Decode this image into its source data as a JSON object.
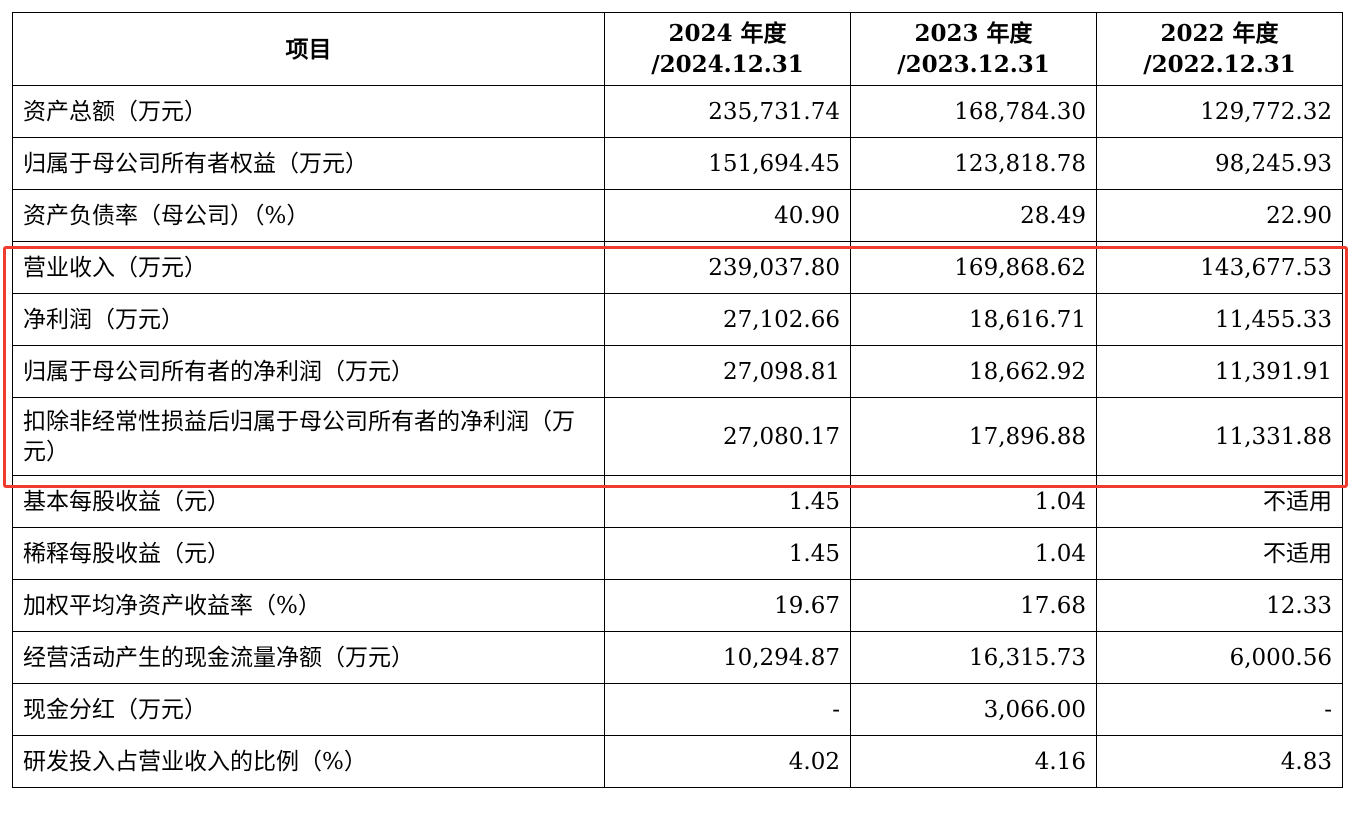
{
  "table": {
    "headers": {
      "item": "项目",
      "col1_line1": "2024 年度",
      "col1_line2": "/2024.12.31",
      "col2_line1": "2023 年度",
      "col2_line2": "/2023.12.31",
      "col3_line1": "2022 年度",
      "col3_line2": "/2022.12.31"
    },
    "rows": [
      {
        "label": "资产总额（万元）",
        "v2024": "235,731.74",
        "v2023": "168,784.30",
        "v2022": "129,772.32"
      },
      {
        "label": "归属于母公司所有者权益（万元）",
        "v2024": "151,694.45",
        "v2023": "123,818.78",
        "v2022": "98,245.93"
      },
      {
        "label": "资产负债率（母公司）（%）",
        "v2024": "40.90",
        "v2023": "28.49",
        "v2022": "22.90"
      },
      {
        "label": "营业收入（万元）",
        "v2024": "239,037.80",
        "v2023": "169,868.62",
        "v2022": "143,677.53"
      },
      {
        "label": "净利润（万元）",
        "v2024": "27,102.66",
        "v2023": "18,616.71",
        "v2022": "11,455.33"
      },
      {
        "label": "归属于母公司所有者的净利润（万元）",
        "v2024": "27,098.81",
        "v2023": "18,662.92",
        "v2022": "11,391.91"
      },
      {
        "label": "扣除非经常性损益后归属于母公司所有者的净利润（万元）",
        "v2024": "27,080.17",
        "v2023": "17,896.88",
        "v2022": "11,331.88"
      },
      {
        "label": "基本每股收益（元）",
        "v2024": "1.45",
        "v2023": "1.04",
        "v2022": "不适用"
      },
      {
        "label": "稀释每股收益（元）",
        "v2024": "1.45",
        "v2023": "1.04",
        "v2022": "不适用"
      },
      {
        "label": "加权平均净资产收益率（%）",
        "v2024": "19.67",
        "v2023": "17.68",
        "v2022": "12.33"
      },
      {
        "label": "经营活动产生的现金流量净额（万元）",
        "v2024": "10,294.87",
        "v2023": "16,315.73",
        "v2022": "6,000.56"
      },
      {
        "label": "现金分红（万元）",
        "v2024": "-",
        "v2023": "3,066.00",
        "v2022": "-"
      },
      {
        "label": "研发投入占营业收入的比例（%）",
        "v2024": "4.02",
        "v2023": "4.16",
        "v2022": "4.83"
      }
    ]
  },
  "highlight": {
    "color": "#f03c2e"
  }
}
